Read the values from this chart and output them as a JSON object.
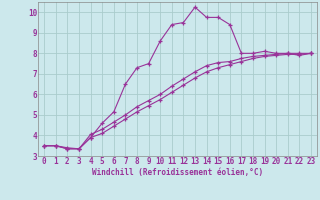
{
  "background_color": "#cce8ec",
  "grid_color": "#aacccc",
  "line_color": "#993399",
  "spine_color": "#888888",
  "xlabel": "Windchill (Refroidissement éolien,°C)",
  "xlim_min": -0.5,
  "xlim_max": 23.5,
  "ylim_min": 3.0,
  "ylim_max": 10.5,
  "xticks": [
    0,
    1,
    2,
    3,
    4,
    5,
    6,
    7,
    8,
    9,
    10,
    11,
    12,
    13,
    14,
    15,
    16,
    17,
    18,
    19,
    20,
    21,
    22,
    23
  ],
  "yticks": [
    3,
    4,
    5,
    6,
    7,
    8,
    9,
    10
  ],
  "line1_x": [
    0,
    1,
    2,
    3,
    4,
    5,
    6,
    7,
    8,
    9,
    10,
    11,
    12,
    13,
    14,
    15,
    16,
    17,
    18,
    19,
    20,
    21,
    22,
    23
  ],
  "line1_y": [
    3.5,
    3.5,
    3.4,
    3.35,
    3.9,
    4.6,
    5.15,
    6.5,
    7.3,
    7.5,
    8.6,
    9.4,
    9.5,
    10.25,
    9.75,
    9.75,
    9.4,
    8.0,
    8.0,
    8.1,
    8.0,
    8.0,
    7.9,
    8.0
  ],
  "line2_x": [
    0,
    1,
    2,
    3,
    4,
    5,
    6,
    7,
    8,
    9,
    10,
    11,
    12,
    13,
    14,
    15,
    16,
    17,
    18,
    19,
    20,
    21,
    22,
    23
  ],
  "line2_y": [
    3.5,
    3.5,
    3.35,
    3.35,
    4.05,
    4.3,
    4.65,
    5.0,
    5.4,
    5.7,
    6.0,
    6.4,
    6.75,
    7.1,
    7.4,
    7.55,
    7.6,
    7.75,
    7.85,
    7.9,
    7.95,
    8.0,
    8.0,
    8.0
  ],
  "line3_x": [
    0,
    1,
    2,
    3,
    4,
    5,
    6,
    7,
    8,
    9,
    10,
    11,
    12,
    13,
    14,
    15,
    16,
    17,
    18,
    19,
    20,
    21,
    22,
    23
  ],
  "line3_y": [
    3.5,
    3.5,
    3.35,
    3.35,
    3.9,
    4.1,
    4.45,
    4.8,
    5.15,
    5.45,
    5.75,
    6.1,
    6.45,
    6.8,
    7.1,
    7.3,
    7.45,
    7.6,
    7.75,
    7.85,
    7.9,
    7.95,
    7.95,
    8.0
  ],
  "tick_labelsize": 5.5,
  "xlabel_fontsize": 5.5,
  "marker": "+",
  "markersize": 3,
  "linewidth": 0.8
}
